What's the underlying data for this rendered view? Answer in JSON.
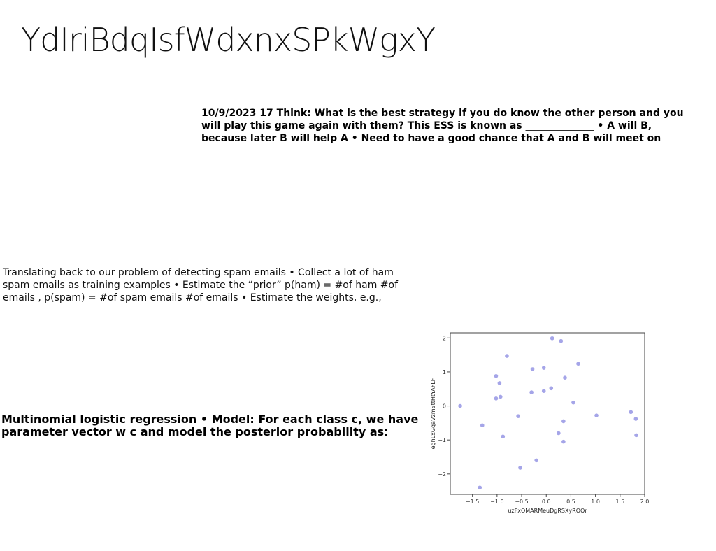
{
  "page": {
    "title": "YdIriBdqIsfWdxnxSPkWgxY",
    "heavy_text": "10/9/2023 17 Think: What is the best strategy if you do know the other person and you will play this game again with them? This ESS is known as ______________ • A will B, because later B will help A • Need to have a good chance that A and B will meet on",
    "light_text": "Translating back to our problem of detecting spam emails • Collect a lot of ham spam emails as training examples • Estimate the “prior” p(ham) = #of ham #of emails , p(spam) = #of spam emails #of emails • Estimate the weights, e.g.,",
    "bold_text": "Multinomial logistic regression • Model: For each class c, we have parameter vector w c and model the posterior probability as:"
  },
  "chart_data": {
    "type": "scatter",
    "xlabel": "uzFxOMARMeuDgRSXyROQr",
    "ylabel": "eghLxGqaVzmSttHtYAFLF",
    "xlim": [
      -1.95,
      2.0
    ],
    "ylim": [
      -2.6,
      2.15
    ],
    "x_ticks": [
      -1.5,
      -1.0,
      -0.5,
      0.0,
      0.5,
      1.0,
      1.5,
      2.0
    ],
    "x_tick_labels": [
      "−1.5",
      "−1.0",
      "−0.5",
      "0.0",
      "0.5",
      "1.0",
      "1.5",
      "2.0"
    ],
    "y_ticks": [
      -2,
      -1,
      0,
      1,
      2
    ],
    "y_tick_labels": [
      "−2",
      "−1",
      "0",
      "1",
      "2"
    ],
    "grid": false,
    "point_color": "#9b9be6",
    "points": [
      {
        "x": -1.75,
        "y": 0.0
      },
      {
        "x": -1.3,
        "y": -0.57
      },
      {
        "x": -1.35,
        "y": -2.4
      },
      {
        "x": -1.02,
        "y": 0.88
      },
      {
        "x": -1.02,
        "y": 0.22
      },
      {
        "x": -0.95,
        "y": 0.67
      },
      {
        "x": -0.93,
        "y": 0.27
      },
      {
        "x": -0.88,
        "y": -0.9
      },
      {
        "x": -0.8,
        "y": 1.47
      },
      {
        "x": -0.57,
        "y": -0.3
      },
      {
        "x": -0.53,
        "y": -1.82
      },
      {
        "x": -0.3,
        "y": 0.4
      },
      {
        "x": -0.28,
        "y": 1.08
      },
      {
        "x": -0.2,
        "y": -1.6
      },
      {
        "x": -0.05,
        "y": 1.12
      },
      {
        "x": -0.05,
        "y": 0.44
      },
      {
        "x": 0.1,
        "y": 0.52
      },
      {
        "x": 0.12,
        "y": 1.99
      },
      {
        "x": 0.25,
        "y": -0.8
      },
      {
        "x": 0.3,
        "y": 1.91
      },
      {
        "x": 0.35,
        "y": -0.45
      },
      {
        "x": 0.35,
        "y": -1.05
      },
      {
        "x": 0.38,
        "y": 0.83
      },
      {
        "x": 0.55,
        "y": 0.1
      },
      {
        "x": 0.65,
        "y": 1.24
      },
      {
        "x": 1.02,
        "y": -0.28
      },
      {
        "x": 1.72,
        "y": -0.18
      },
      {
        "x": 1.82,
        "y": -0.38
      },
      {
        "x": 1.83,
        "y": -0.86
      }
    ]
  }
}
